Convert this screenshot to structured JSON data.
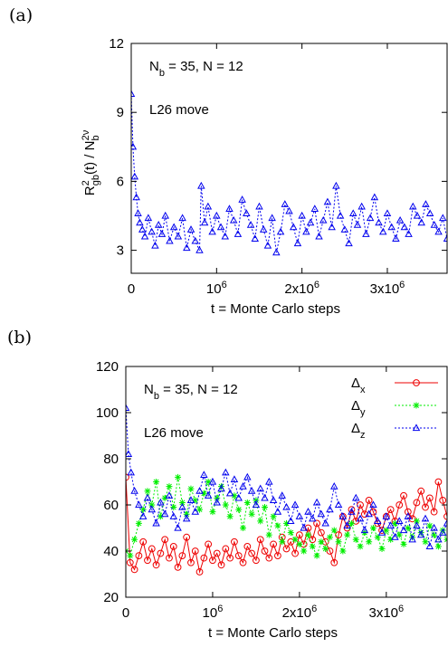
{
  "figure": {
    "panels": [
      "(a)",
      "(b)"
    ]
  },
  "chart_data": [
    {
      "type": "scatter",
      "panel": "(a)",
      "xlabel": "t = Monte Carlo steps",
      "ylabel": "R_gb^2(t) / N_b^(2ν)",
      "ylabel_parts": {
        "main": "R",
        "sup": "2",
        "sub": "gb",
        "mid": "(t) / N",
        "sub2": "b",
        "sup2": "2ν"
      },
      "xlim": [
        0,
        3700000
      ],
      "ylim": [
        2,
        12
      ],
      "xticks": [
        {
          "value": 0,
          "label": "0"
        },
        {
          "value": 1000000,
          "label": "10^6"
        },
        {
          "value": 2000000,
          "label": "2x10^6"
        },
        {
          "value": 3000000,
          "label": "3x10^6"
        }
      ],
      "yticks": [
        3,
        6,
        9,
        12
      ],
      "annotations": [
        "N_b = 35, N = 12",
        "L26 move"
      ],
      "series": [
        {
          "marker": "triangle",
          "color": "#0000ee",
          "dashed": true,
          "x": [
            0,
            20000,
            40000,
            60000,
            80000,
            100000,
            130000,
            160000,
            200000,
            240000,
            280000,
            320000,
            360000,
            400000,
            450000,
            500000,
            550000,
            600000,
            650000,
            700000,
            750000,
            800000,
            820000,
            860000,
            900000,
            950000,
            1000000,
            1050000,
            1100000,
            1150000,
            1200000,
            1250000,
            1300000,
            1350000,
            1400000,
            1450000,
            1500000,
            1550000,
            1600000,
            1650000,
            1700000,
            1750000,
            1800000,
            1850000,
            1900000,
            1950000,
            2000000,
            2050000,
            2100000,
            2150000,
            2200000,
            2250000,
            2300000,
            2350000,
            2400000,
            2450000,
            2500000,
            2550000,
            2600000,
            2650000,
            2700000,
            2750000,
            2800000,
            2850000,
            2900000,
            2950000,
            3000000,
            3050000,
            3100000,
            3150000,
            3200000,
            3250000,
            3300000,
            3350000,
            3400000,
            3450000,
            3500000,
            3550000,
            3600000,
            3650000,
            3700000
          ],
          "y": [
            9.8,
            7.5,
            6.2,
            5.3,
            4.6,
            4.2,
            3.9,
            3.6,
            4.4,
            3.8,
            3.2,
            4.1,
            3.7,
            4.5,
            3.4,
            4.0,
            3.6,
            4.4,
            3.1,
            3.9,
            3.4,
            3.0,
            5.8,
            4.2,
            4.9,
            3.8,
            4.5,
            4.0,
            3.6,
            4.8,
            4.3,
            3.7,
            5.2,
            4.6,
            4.1,
            3.5,
            4.9,
            3.9,
            3.2,
            4.4,
            2.9,
            3.8,
            5.0,
            4.7,
            4.0,
            3.3,
            4.5,
            3.8,
            4.2,
            4.8,
            3.6,
            4.3,
            5.1,
            4.0,
            5.8,
            4.5,
            3.9,
            3.3,
            4.6,
            4.1,
            4.9,
            3.7,
            4.4,
            5.3,
            4.2,
            3.8,
            4.6,
            4.0,
            3.5,
            4.3,
            4.0,
            3.7,
            4.9,
            4.5,
            4.2,
            5.0,
            4.6,
            4.1,
            3.8,
            4.4,
            3.5
          ]
        }
      ]
    },
    {
      "type": "scatter",
      "panel": "(b)",
      "xlabel": "t = Monte Carlo steps",
      "ylabel": "",
      "xlim": [
        0,
        3700000
      ],
      "ylim": [
        20,
        120
      ],
      "xticks": [
        {
          "value": 0,
          "label": "0"
        },
        {
          "value": 1000000,
          "label": "10^6"
        },
        {
          "value": 2000000,
          "label": "2x10^6"
        },
        {
          "value": 3000000,
          "label": "3x10^6"
        }
      ],
      "yticks": [
        20,
        40,
        60,
        80,
        100,
        120
      ],
      "annotations": [
        "N_b = 35, N = 12",
        "L26 move"
      ],
      "legend": "top-right",
      "series": [
        {
          "name": "Δx",
          "name_main": "Δ",
          "name_sub": "x",
          "marker": "circle",
          "color": "#ee0000",
          "dashed": false,
          "x": [
            0,
            50000,
            100000,
            150000,
            200000,
            250000,
            300000,
            350000,
            400000,
            450000,
            500000,
            550000,
            600000,
            650000,
            700000,
            750000,
            800000,
            850000,
            900000,
            950000,
            1000000,
            1050000,
            1100000,
            1150000,
            1200000,
            1250000,
            1300000,
            1350000,
            1400000,
            1450000,
            1500000,
            1550000,
            1600000,
            1650000,
            1700000,
            1750000,
            1800000,
            1850000,
            1900000,
            1950000,
            2000000,
            2050000,
            2100000,
            2150000,
            2200000,
            2250000,
            2300000,
            2350000,
            2400000,
            2450000,
            2500000,
            2550000,
            2600000,
            2650000,
            2700000,
            2750000,
            2800000,
            2850000,
            2900000,
            2950000,
            3000000,
            3050000,
            3100000,
            3150000,
            3200000,
            3250000,
            3300000,
            3350000,
            3400000,
            3450000,
            3500000,
            3550000,
            3600000,
            3650000,
            3700000
          ],
          "y": [
            72,
            35,
            32,
            38,
            44,
            36,
            41,
            34,
            39,
            45,
            37,
            42,
            33,
            38,
            46,
            35,
            40,
            31,
            37,
            43,
            36,
            39,
            34,
            41,
            37,
            44,
            38,
            35,
            42,
            39,
            36,
            45,
            40,
            37,
            43,
            38,
            46,
            41,
            44,
            39,
            47,
            43,
            50,
            45,
            52,
            48,
            44,
            40,
            35,
            47,
            55,
            50,
            58,
            53,
            60,
            56,
            62,
            57,
            52,
            49,
            55,
            58,
            53,
            60,
            64,
            57,
            54,
            61,
            66,
            59,
            63,
            57,
            70,
            62,
            55
          ]
        },
        {
          "name": "Δy",
          "name_main": "Δ",
          "name_sub": "y",
          "marker": "star",
          "color": "#00ee00",
          "dashed": true,
          "x": [
            0,
            50000,
            100000,
            150000,
            200000,
            250000,
            300000,
            350000,
            400000,
            450000,
            500000,
            550000,
            600000,
            650000,
            700000,
            750000,
            800000,
            850000,
            900000,
            950000,
            1000000,
            1050000,
            1100000,
            1150000,
            1200000,
            1250000,
            1300000,
            1350000,
            1400000,
            1450000,
            1500000,
            1550000,
            1600000,
            1650000,
            1700000,
            1750000,
            1800000,
            1850000,
            1900000,
            1950000,
            2000000,
            2050000,
            2100000,
            2150000,
            2200000,
            2250000,
            2300000,
            2350000,
            2400000,
            2450000,
            2500000,
            2550000,
            2600000,
            2650000,
            2700000,
            2750000,
            2800000,
            2850000,
            2900000,
            2950000,
            3000000,
            3050000,
            3100000,
            3150000,
            3200000,
            3250000,
            3300000,
            3350000,
            3400000,
            3450000,
            3500000,
            3550000,
            3600000,
            3650000,
            3700000
          ],
          "y": [
            40,
            38,
            45,
            52,
            58,
            66,
            60,
            70,
            55,
            63,
            68,
            59,
            72,
            61,
            56,
            67,
            62,
            58,
            65,
            70,
            57,
            63,
            68,
            60,
            55,
            64,
            58,
            50,
            61,
            56,
            62,
            53,
            59,
            47,
            55,
            51,
            44,
            52,
            48,
            45,
            43,
            40,
            47,
            42,
            38,
            44,
            41,
            46,
            49,
            44,
            40,
            47,
            52,
            45,
            42,
            48,
            44,
            50,
            46,
            41,
            49,
            45,
            52,
            47,
            43,
            50,
            46,
            53,
            48,
            44,
            51,
            47,
            42,
            49,
            45
          ]
        },
        {
          "name": "Δz",
          "name_main": "Δ",
          "name_sub": "z",
          "marker": "triangle",
          "color": "#0000ee",
          "dashed": true,
          "x": [
            0,
            30000,
            60000,
            100000,
            150000,
            200000,
            250000,
            300000,
            350000,
            400000,
            450000,
            500000,
            550000,
            600000,
            650000,
            700000,
            750000,
            800000,
            850000,
            900000,
            950000,
            1000000,
            1050000,
            1100000,
            1150000,
            1200000,
            1250000,
            1300000,
            1350000,
            1400000,
            1450000,
            1500000,
            1550000,
            1600000,
            1650000,
            1700000,
            1750000,
            1800000,
            1850000,
            1900000,
            1950000,
            2000000,
            2050000,
            2100000,
            2150000,
            2200000,
            2250000,
            2300000,
            2350000,
            2400000,
            2450000,
            2500000,
            2550000,
            2600000,
            2650000,
            2700000,
            2750000,
            2800000,
            2850000,
            2900000,
            2950000,
            3000000,
            3050000,
            3100000,
            3150000,
            3200000,
            3250000,
            3300000,
            3350000,
            3400000,
            3450000,
            3500000,
            3550000,
            3600000,
            3650000,
            3700000
          ],
          "y": [
            102,
            82,
            74,
            66,
            60,
            55,
            63,
            58,
            52,
            61,
            56,
            64,
            55,
            50,
            59,
            54,
            62,
            57,
            66,
            73,
            64,
            70,
            61,
            67,
            74,
            65,
            71,
            63,
            68,
            72,
            66,
            60,
            67,
            63,
            70,
            62,
            57,
            64,
            59,
            53,
            60,
            55,
            50,
            57,
            54,
            61,
            56,
            52,
            58,
            68,
            60,
            55,
            51,
            57,
            63,
            54,
            49,
            56,
            60,
            53,
            48,
            55,
            51,
            46,
            53,
            49,
            55,
            45,
            51,
            47,
            54,
            42,
            50,
            45,
            48,
            52
          ]
        }
      ]
    }
  ]
}
